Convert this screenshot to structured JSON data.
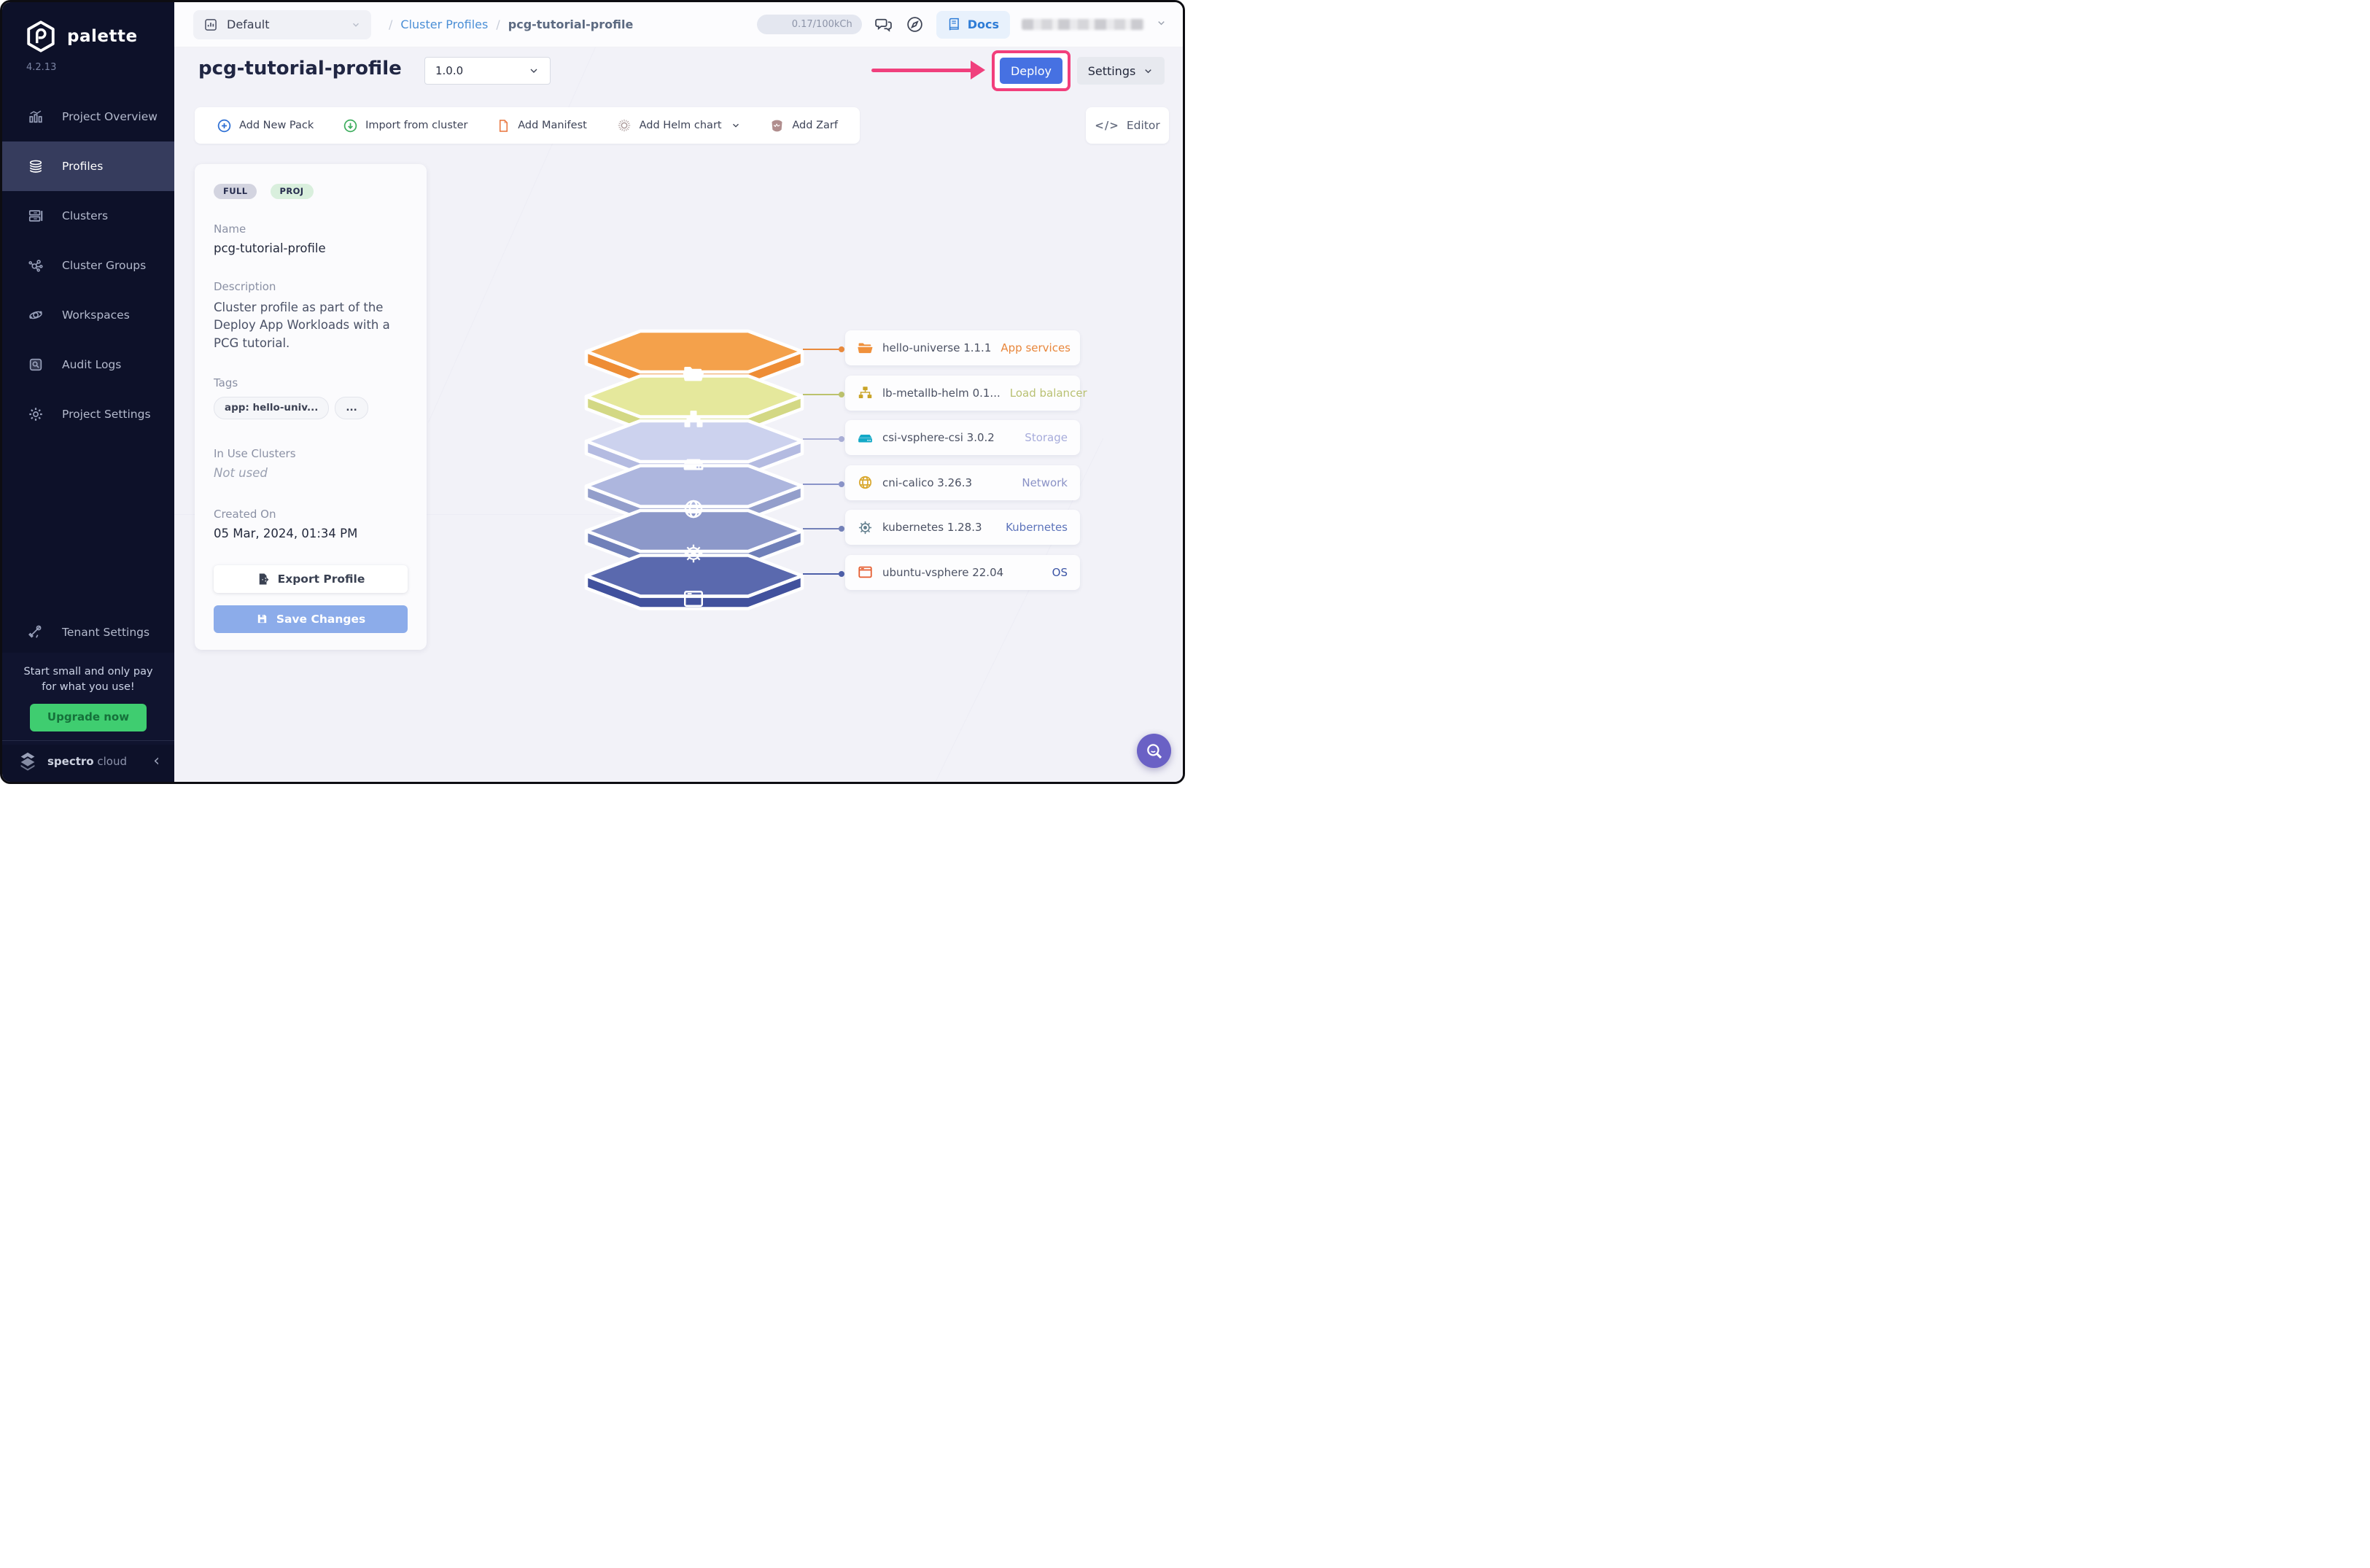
{
  "sidebar": {
    "logo_text": "palette",
    "version": "4.2.13",
    "items": [
      {
        "label": "Project Overview",
        "active": false
      },
      {
        "label": "Profiles",
        "active": true
      },
      {
        "label": "Clusters",
        "active": false
      },
      {
        "label": "Cluster Groups",
        "active": false
      },
      {
        "label": "Workspaces",
        "active": false
      },
      {
        "label": "Audit Logs",
        "active": false
      },
      {
        "label": "Project Settings",
        "active": false
      }
    ],
    "tenant_settings_label": "Tenant Settings",
    "promo_line1": "Start small and only pay",
    "promo_line2": "for what you use!",
    "upgrade_button": "Upgrade now",
    "brand_bold": "spectro",
    "brand_light": "cloud"
  },
  "topbar": {
    "project_selector": "Default",
    "breadcrumb_separator": "/",
    "breadcrumb_link": "Cluster Profiles",
    "breadcrumb_current": "pcg-tutorial-profile",
    "usage": "0.17/100kCh",
    "docs_label": "Docs"
  },
  "header": {
    "title": "pcg-tutorial-profile",
    "version_selected": "1.0.0",
    "deploy_button": "Deploy",
    "settings_button": "Settings",
    "annotation_color": "#f23f7c"
  },
  "toolbar": {
    "add_new_pack": "Add New Pack",
    "import_from_cluster": "Import from cluster",
    "add_manifest": "Add Manifest",
    "add_helm_chart": "Add Helm chart",
    "add_zarf": "Add Zarf",
    "editor": "Editor"
  },
  "profile_card": {
    "badges": [
      "FULL",
      "PROJ"
    ],
    "name_label": "Name",
    "name_value": "pcg-tutorial-profile",
    "description_label": "Description",
    "description_value": "Cluster profile as part of the Deploy App Workloads with a PCG tutorial.",
    "tags_label": "Tags",
    "tag_1": "app: hello-univ...",
    "tag_more": "...",
    "in_use_label": "In Use Clusters",
    "in_use_value": "Not used",
    "created_label": "Created On",
    "created_value": "05 Mar, 2024, 01:34 PM",
    "export_button": "Export Profile",
    "save_button": "Save Changes"
  },
  "packs": [
    {
      "name": "hello-universe 1.1.1",
      "category": "App services",
      "category_color": "#e8863b",
      "icon": "folder",
      "icon_color": "#f0913c",
      "layer_top": "#f4a14b",
      "layer_front": "#ee8d35",
      "connector": "#e98a3c"
    },
    {
      "name": "lb-metallb-helm 0.1...",
      "category": "Load balancer",
      "category_color": "#b9c173",
      "icon": "sitemap",
      "icon_color": "#c9a427",
      "layer_top": "#e5e89c",
      "layer_front": "#d3d884",
      "connector": "#bcc26d"
    },
    {
      "name": "csi-vsphere-csi 3.0.2",
      "category": "Storage",
      "category_color": "#a7acdb",
      "icon": "drive",
      "icon_color": "#14a9c7",
      "layer_top": "#ccd2ee",
      "layer_front": "#b4bbe1",
      "connector": "#a9aed6"
    },
    {
      "name": "cni-calico 3.26.3",
      "category": "Network",
      "category_color": "#8a92c6",
      "icon": "globe",
      "icon_color": "#d9a82f",
      "layer_top": "#adb6de",
      "layer_front": "#939ecb",
      "connector": "#8a94c8"
    },
    {
      "name": "kubernetes 1.28.3",
      "category": "Kubernetes",
      "category_color": "#5d74bb",
      "icon": "helm",
      "icon_color": "#64808f",
      "layer_top": "#8c98c9",
      "layer_front": "#7080b9",
      "connector": "#7381b8"
    },
    {
      "name": "ubuntu-vsphere 22.04",
      "category": "OS",
      "category_color": "#3c55a5",
      "icon": "window",
      "icon_color": "#e55b2d",
      "layer_top": "#5a69ae",
      "layer_front": "#41519d",
      "connector": "#4d5fa8"
    }
  ]
}
